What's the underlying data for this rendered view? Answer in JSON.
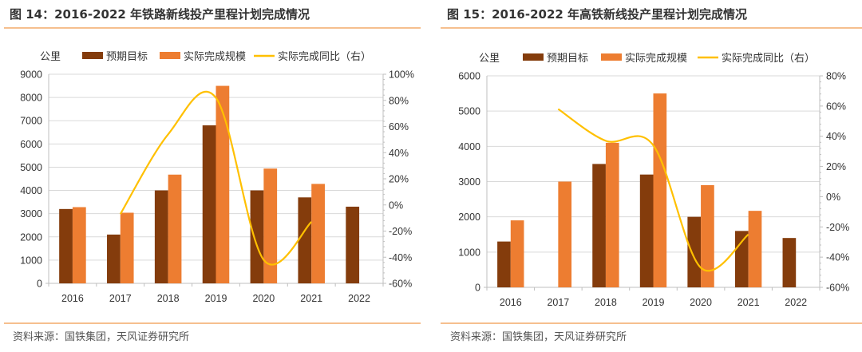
{
  "colors": {
    "target": "#843c0c",
    "actual": "#ed7d31",
    "yoy": "#ffc000",
    "grid": "#d9d9d9",
    "rule": "#f6bf8e"
  },
  "chart_data": [
    {
      "type": "bar",
      "title": "图 14：2016-2022 年铁路新线投产里程计划完成情况",
      "source": "资料来源：国铁集团，天风证券研究所",
      "ylabel": "公里",
      "categories": [
        "2016",
        "2017",
        "2018",
        "2019",
        "2020",
        "2021",
        "2022"
      ],
      "ylim": [
        0,
        9000
      ],
      "yticks": [
        "0",
        "1000",
        "2000",
        "3000",
        "4000",
        "5000",
        "6000",
        "7000",
        "8000",
        "9000"
      ],
      "y2lim": [
        -60,
        100
      ],
      "y2ticks": [
        "-60%",
        "-40%",
        "-20%",
        "0%",
        "20%",
        "40%",
        "60%",
        "80%",
        "100%"
      ],
      "series": [
        {
          "name": "预期目标",
          "kind": "bar",
          "values": [
            3200,
            2100,
            4000,
            6800,
            4000,
            3700,
            3300
          ]
        },
        {
          "name": "实际完成规模",
          "kind": "bar",
          "values": [
            3280,
            3040,
            4680,
            8500,
            4940,
            4280,
            null
          ]
        },
        {
          "name": "实际完成同比（右）",
          "kind": "line",
          "axis": "right",
          "values": [
            null,
            -7,
            54,
            82,
            -42,
            -13,
            null
          ]
        }
      ],
      "grid": true,
      "legend": "top"
    },
    {
      "type": "bar",
      "title": "图 15：2016-2022 年高铁新线投产里程计划完成情况",
      "source": "资料来源：国铁集团，天风证券研究所",
      "ylabel": "公里",
      "categories": [
        "2016",
        "2017",
        "2018",
        "2019",
        "2020",
        "2021",
        "2022"
      ],
      "ylim": [
        0,
        6000
      ],
      "yticks": [
        "0",
        "1000",
        "2000",
        "3000",
        "4000",
        "5000",
        "6000"
      ],
      "y2lim": [
        -60,
        80
      ],
      "y2ticks": [
        "-60%",
        "-40%",
        "-20%",
        "0%",
        "20%",
        "40%",
        "60%",
        "80%"
      ],
      "series": [
        {
          "name": "预期目标",
          "kind": "bar",
          "values": [
            1300,
            null,
            3500,
            3200,
            2000,
            1600,
            1400
          ]
        },
        {
          "name": "实际完成规模",
          "kind": "bar",
          "values": [
            1900,
            3000,
            4100,
            5500,
            2900,
            2170,
            null
          ]
        },
        {
          "name": "实际完成同比（右）",
          "kind": "line",
          "axis": "right",
          "values": [
            null,
            58,
            37,
            34,
            -47,
            -25,
            null
          ]
        }
      ],
      "grid": true,
      "legend": "top"
    }
  ]
}
